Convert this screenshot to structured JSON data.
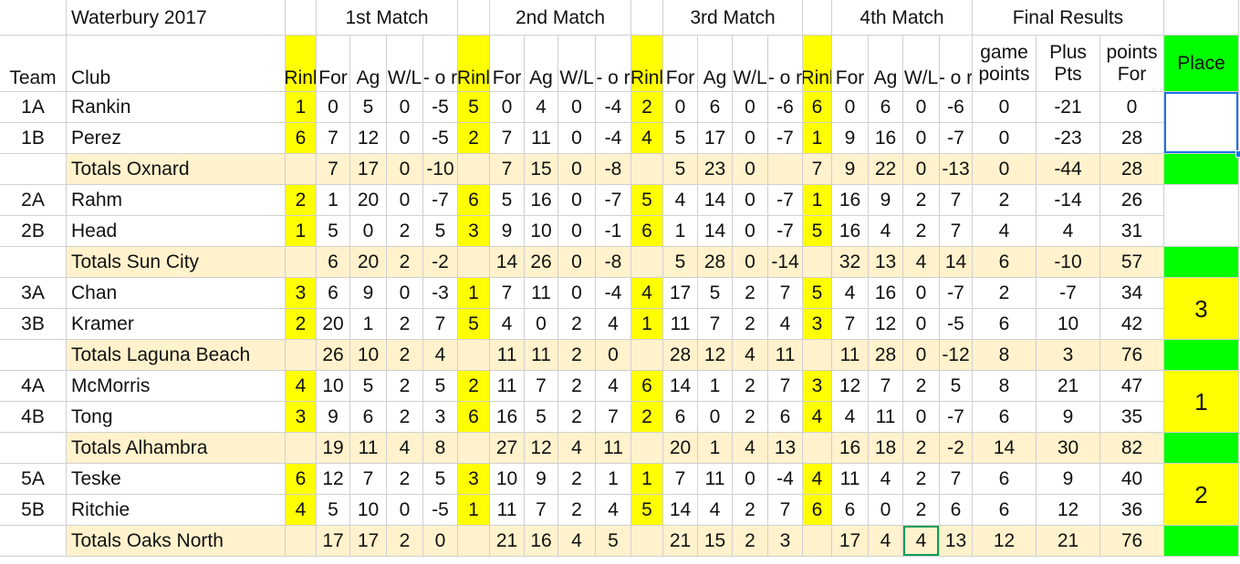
{
  "title": "Waterbury 2017",
  "match_headers": [
    "1st Match",
    "2nd Match",
    "3rd Match",
    "4th Match"
  ],
  "final_header": "Final Results",
  "col_headers": {
    "team": "Team",
    "club": "Club",
    "rink": "Rinl",
    "for": "For",
    "ag": "Ag",
    "wl": "W/L",
    "pm": "- o r",
    "game_points": [
      "game",
      "points"
    ],
    "plus_pts": [
      "Plus",
      "Pts"
    ],
    "points_for": [
      "points",
      "For"
    ],
    "place": "Place"
  },
  "rows": [
    {
      "type": "team",
      "team": "1A",
      "club": "Rankin",
      "m": [
        [
          "1",
          "0",
          "5",
          "0",
          "-5"
        ],
        [
          "5",
          "0",
          "4",
          "0",
          "-4"
        ],
        [
          "2",
          "0",
          "6",
          "0",
          "-6"
        ],
        [
          "6",
          "0",
          "6",
          "0",
          "-6"
        ]
      ],
      "f": [
        "0",
        "-21",
        "0"
      ]
    },
    {
      "type": "team",
      "team": "1B",
      "club": "Perez",
      "m": [
        [
          "6",
          "7",
          "12",
          "0",
          "-5"
        ],
        [
          "2",
          "7",
          "11",
          "0",
          "-4"
        ],
        [
          "4",
          "5",
          "17",
          "0",
          "-7"
        ],
        [
          "1",
          "9",
          "16",
          "0",
          "-7"
        ]
      ],
      "f": [
        "0",
        "-23",
        "28"
      ]
    },
    {
      "type": "totals",
      "club": "Totals Oxnard",
      "m": [
        [
          "",
          "7",
          "17",
          "0",
          "-10"
        ],
        [
          "",
          "7",
          "15",
          "0",
          "-8"
        ],
        [
          "",
          "5",
          "23",
          "0",
          ""
        ],
        [
          "7",
          "9",
          "22",
          "0",
          "-13"
        ]
      ],
      "f": [
        "0",
        "-44",
        "28"
      ]
    },
    {
      "type": "team",
      "team": "2A",
      "club": "Rahm",
      "m": [
        [
          "2",
          "1",
          "20",
          "0",
          "-7"
        ],
        [
          "6",
          "5",
          "16",
          "0",
          "-7"
        ],
        [
          "5",
          "4",
          "14",
          "0",
          "-7"
        ],
        [
          "1",
          "16",
          "9",
          "2",
          "7"
        ]
      ],
      "f": [
        "2",
        "-14",
        "26"
      ]
    },
    {
      "type": "team",
      "team": "2B",
      "club": "Head",
      "m": [
        [
          "1",
          "5",
          "0",
          "2",
          "5"
        ],
        [
          "3",
          "9",
          "10",
          "0",
          "-1"
        ],
        [
          "6",
          "1",
          "14",
          "0",
          "-7"
        ],
        [
          "5",
          "16",
          "4",
          "2",
          "7"
        ]
      ],
      "f": [
        "4",
        "4",
        "31"
      ]
    },
    {
      "type": "totals",
      "club": "Totals Sun City",
      "m": [
        [
          "",
          "6",
          "20",
          "2",
          "-2"
        ],
        [
          "",
          "14",
          "26",
          "0",
          "-8"
        ],
        [
          "",
          "5",
          "28",
          "0",
          "-14"
        ],
        [
          "",
          "32",
          "13",
          "4",
          "14"
        ]
      ],
      "f": [
        "6",
        "-10",
        "57"
      ]
    },
    {
      "type": "team",
      "team": "3A",
      "club": "Chan",
      "m": [
        [
          "3",
          "6",
          "9",
          "0",
          "-3"
        ],
        [
          "1",
          "7",
          "11",
          "0",
          "-4"
        ],
        [
          "4",
          "17",
          "5",
          "2",
          "7"
        ],
        [
          "5",
          "4",
          "16",
          "0",
          "-7"
        ]
      ],
      "f": [
        "2",
        "-7",
        "34"
      ]
    },
    {
      "type": "team",
      "team": "3B",
      "club": "Kramer",
      "m": [
        [
          "2",
          "20",
          "1",
          "2",
          "7"
        ],
        [
          "5",
          "4",
          "0",
          "2",
          "4"
        ],
        [
          "1",
          "11",
          "7",
          "2",
          "4"
        ],
        [
          "3",
          "7",
          "12",
          "0",
          "-5"
        ]
      ],
      "f": [
        "6",
        "10",
        "42"
      ]
    },
    {
      "type": "totals",
      "club": "Totals Laguna Beach",
      "m": [
        [
          "",
          "26",
          "10",
          "2",
          "4"
        ],
        [
          "",
          "11",
          "11",
          "2",
          "0"
        ],
        [
          "",
          "28",
          "12",
          "4",
          "11"
        ],
        [
          "",
          "11",
          "28",
          "0",
          "-12"
        ]
      ],
      "f": [
        "8",
        "3",
        "76"
      ]
    },
    {
      "type": "team",
      "team": "4A",
      "club": "McMorris",
      "m": [
        [
          "4",
          "10",
          "5",
          "2",
          "5"
        ],
        [
          "2",
          "11",
          "7",
          "2",
          "4"
        ],
        [
          "6",
          "14",
          "1",
          "2",
          "7"
        ],
        [
          "3",
          "12",
          "7",
          "2",
          "5"
        ]
      ],
      "f": [
        "8",
        "21",
        "47"
      ]
    },
    {
      "type": "team",
      "team": "4B",
      "club": "Tong",
      "m": [
        [
          "3",
          "9",
          "6",
          "2",
          "3"
        ],
        [
          "6",
          "16",
          "5",
          "2",
          "7"
        ],
        [
          "2",
          "6",
          "0",
          "2",
          "6"
        ],
        [
          "4",
          "4",
          "11",
          "0",
          "-7"
        ]
      ],
      "f": [
        "6",
        "9",
        "35"
      ]
    },
    {
      "type": "totals",
      "club": "Totals Alhambra",
      "m": [
        [
          "",
          "19",
          "11",
          "4",
          "8"
        ],
        [
          "",
          "27",
          "12",
          "4",
          "11"
        ],
        [
          "",
          "20",
          "1",
          "4",
          "13"
        ],
        [
          "",
          "16",
          "18",
          "2",
          "-2"
        ]
      ],
      "f": [
        "14",
        "30",
        "82"
      ]
    },
    {
      "type": "team",
      "team": "5A",
      "club": "Teske",
      "m": [
        [
          "6",
          "12",
          "7",
          "2",
          "5"
        ],
        [
          "3",
          "10",
          "9",
          "2",
          "1"
        ],
        [
          "1",
          "7",
          "11",
          "0",
          "-4"
        ],
        [
          "4",
          "11",
          "4",
          "2",
          "7"
        ]
      ],
      "f": [
        "6",
        "9",
        "40"
      ]
    },
    {
      "type": "team",
      "team": "5B",
      "club": "Ritchie",
      "m": [
        [
          "4",
          "5",
          "10",
          "0",
          "-5"
        ],
        [
          "1",
          "11",
          "7",
          "2",
          "4"
        ],
        [
          "5",
          "14",
          "4",
          "2",
          "7"
        ],
        [
          "6",
          "6",
          "0",
          "2",
          "6"
        ]
      ],
      "f": [
        "6",
        "12",
        "36"
      ]
    },
    {
      "type": "totals",
      "club": "Totals Oaks North",
      "m": [
        [
          "",
          "17",
          "17",
          "2",
          "0"
        ],
        [
          "",
          "21",
          "16",
          "4",
          "5"
        ],
        [
          "",
          "21",
          "15",
          "2",
          "3"
        ],
        [
          "",
          "17",
          "4",
          "4",
          "13"
        ]
      ],
      "f": [
        "12",
        "21",
        "76"
      ]
    }
  ],
  "places": [
    "",
    "",
    "3",
    "1",
    "2"
  ],
  "colors": {
    "rink": "#ffff00",
    "totals": "#fff2cc",
    "place_green": "#00ff00",
    "place_yellow": "#ffff00",
    "selection": "#1a73e8",
    "active_cell": "#0f9d58"
  }
}
